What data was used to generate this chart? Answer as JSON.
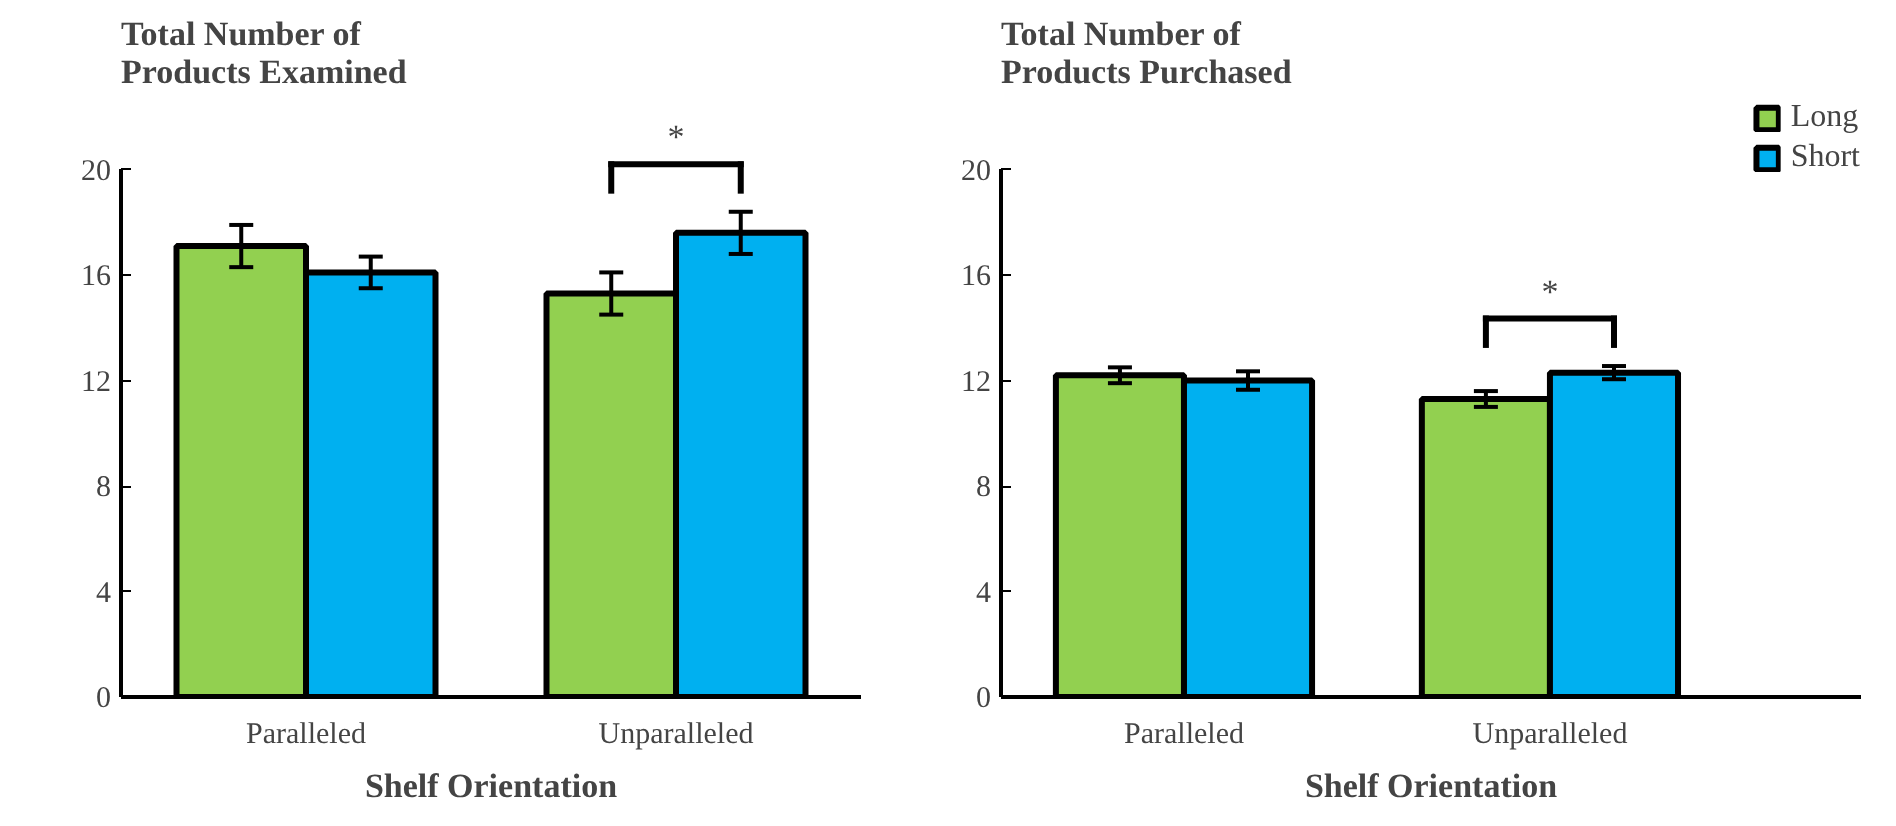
{
  "chart_data": [
    {
      "type": "bar",
      "title": "Total Number of\nProducts Examined",
      "xlabel": "Shelf Orientation",
      "categories": [
        "Paralleled",
        "Unparalleled"
      ],
      "ylim": [
        0,
        20
      ],
      "yticks": [
        0,
        4,
        8,
        12,
        16,
        20
      ],
      "grid": false,
      "legend": false,
      "series": [
        {
          "color": "#92d050",
          "values": [
            17.1,
            15.3
          ],
          "errors": [
            0.8,
            0.8
          ]
        },
        {
          "color": "#00b0f0",
          "values": [
            16.1,
            17.6
          ],
          "errors": [
            0.6,
            0.8
          ]
        }
      ],
      "annotations": [
        "*"
      ]
    },
    {
      "type": "bar",
      "title": "Total Number of\nProducts Purchased",
      "xlabel": "Shelf Orientation",
      "categories": [
        "Paralleled",
        "Unparalleled"
      ],
      "ylim": [
        0,
        20
      ],
      "yticks": [
        0,
        4,
        8,
        12,
        16,
        20
      ],
      "grid": false,
      "legend": "top right",
      "series": [
        {
          "name": "Long",
          "color": "#92d050",
          "values": [
            12.2,
            11.3
          ],
          "errors": [
            0.3,
            0.3
          ]
        },
        {
          "name": "Short",
          "color": "#00b0f0",
          "values": [
            12.0,
            12.3
          ],
          "errors": [
            0.35,
            0.25
          ]
        }
      ],
      "annotations": [
        "*"
      ]
    }
  ]
}
